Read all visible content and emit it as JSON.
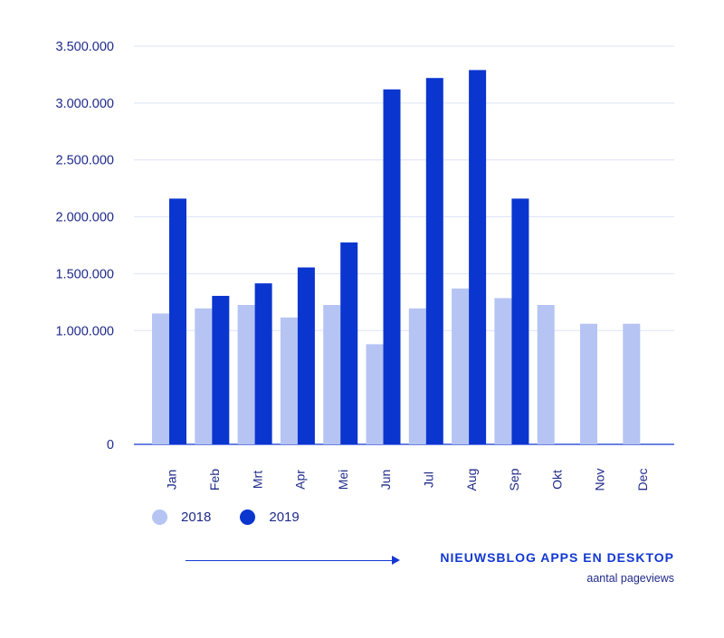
{
  "chart_data": {
    "type": "bar",
    "categories": [
      "Jan",
      "Feb",
      "Mrt",
      "Apr",
      "Mei",
      "Jun",
      "Jul",
      "Aug",
      "Sep",
      "Okt",
      "Nov",
      "Dec"
    ],
    "series": [
      {
        "name": "2018",
        "color": "#b5c4f3",
        "values": [
          1150000,
          1195000,
          1225000,
          1115000,
          1225000,
          880000,
          1195000,
          1370000,
          1285000,
          1225000,
          1060000,
          1060000
        ]
      },
      {
        "name": "2019",
        "color": "#0a35cf",
        "values": [
          2160000,
          1305000,
          1415000,
          1555000,
          1775000,
          3120000,
          3220000,
          3290000,
          2160000,
          null,
          null,
          null
        ]
      }
    ],
    "yticks": [
      "0",
      "1.000.000",
      "1.500.000",
      "2.000.000",
      "2.500.000",
      "3.000.000",
      "3.500.000"
    ],
    "ylim": [
      0,
      3500000
    ],
    "grid": true,
    "legend_position": "bottom-left"
  },
  "footer": {
    "title": "NIEUWSBLOG APPS EN DESKTOP",
    "subtitle": "aantal pageviews"
  }
}
